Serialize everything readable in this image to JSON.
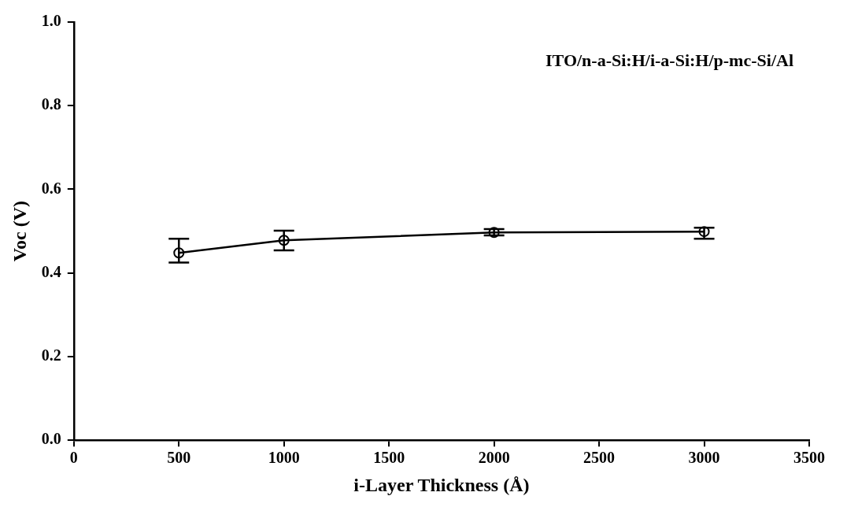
{
  "chart_data": {
    "type": "line",
    "x": [
      500,
      1000,
      2000,
      3000
    ],
    "values": [
      0.448,
      0.478,
      0.497,
      0.499
    ],
    "errors": [
      [
        0.425,
        0.482
      ],
      [
        0.454,
        0.501
      ],
      [
        0.49,
        0.505
      ],
      [
        0.482,
        0.508
      ]
    ],
    "color": "#000000",
    "marker": "circle",
    "xlabel": "i-Layer Thickness (Å)",
    "ylabel": "Voc (V)",
    "annotations": [
      "ITO/n-a-Si:H/i-a-Si:H/p-mc-Si/Al"
    ],
    "xlim": [
      0,
      3500
    ],
    "xticks": [
      0,
      500,
      1000,
      1500,
      2000,
      2500,
      3000,
      3500
    ],
    "ylim": [
      0,
      1.0
    ],
    "yticks": [
      {
        "value": 0,
        "label": "0.0"
      },
      0.2,
      0.4,
      0.6,
      0.8,
      {
        "value": 1,
        "label": "1.0"
      }
    ],
    "grid": false,
    "legend": false
  }
}
